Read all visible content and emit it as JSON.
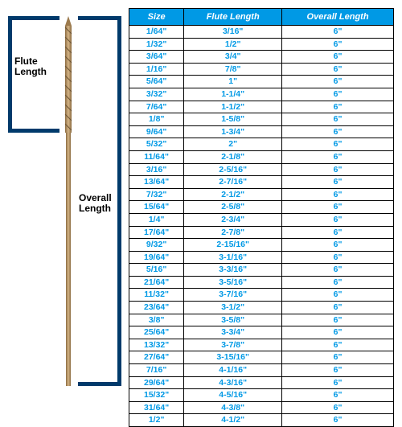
{
  "diagram": {
    "flute_label_line1": "Flute",
    "flute_label_line2": "Length",
    "overall_label_line1": "Overall",
    "overall_label_line2": "Length",
    "bracket_color": "#003a6b",
    "drill_color": "#b8935f"
  },
  "table": {
    "header_bg": "#0099e5",
    "header_fg": "#ffffff",
    "cell_fg": "#0099e5",
    "border_color": "#000000",
    "columns": [
      "Size",
      "Flute Length",
      "Overall Length"
    ],
    "rows": [
      [
        "1/64\"",
        "3/16\"",
        "6\""
      ],
      [
        "1/32\"",
        "1/2\"",
        "6\""
      ],
      [
        "3/64\"",
        "3/4\"",
        "6\""
      ],
      [
        "1/16\"",
        "7/8\"",
        "6\""
      ],
      [
        "5/64\"",
        "1\"",
        "6\""
      ],
      [
        "3/32\"",
        "1-1/4\"",
        "6\""
      ],
      [
        "7/64\"",
        "1-1/2\"",
        "6\""
      ],
      [
        "1/8\"",
        "1-5/8\"",
        "6\""
      ],
      [
        "9/64\"",
        "1-3/4\"",
        "6\""
      ],
      [
        "5/32\"",
        "2\"",
        "6\""
      ],
      [
        "11/64\"",
        "2-1/8\"",
        "6\""
      ],
      [
        "3/16\"",
        "2-5/16\"",
        "6\""
      ],
      [
        "13/64\"",
        "2-7/16\"",
        "6\""
      ],
      [
        "7/32\"",
        "2-1/2\"",
        "6\""
      ],
      [
        "15/64\"",
        "2-5/8\"",
        "6\""
      ],
      [
        "1/4\"",
        "2-3/4\"",
        "6\""
      ],
      [
        "17/64\"",
        "2-7/8\"",
        "6\""
      ],
      [
        "9/32\"",
        "2-15/16\"",
        "6\""
      ],
      [
        "19/64\"",
        "3-1/16\"",
        "6\""
      ],
      [
        "5/16\"",
        "3-3/16\"",
        "6\""
      ],
      [
        "21/64\"",
        "3-5/16\"",
        "6\""
      ],
      [
        "11/32\"",
        "3-7/16\"",
        "6\""
      ],
      [
        "23/64\"",
        "3-1/2\"",
        "6\""
      ],
      [
        "3/8\"",
        "3-5/8\"",
        "6\""
      ],
      [
        "25/64\"",
        "3-3/4\"",
        "6\""
      ],
      [
        "13/32\"",
        "3-7/8\"",
        "6\""
      ],
      [
        "27/64\"",
        "3-15/16\"",
        "6\""
      ],
      [
        "7/16\"",
        "4-1/16\"",
        "6\""
      ],
      [
        "29/64\"",
        "4-3/16\"",
        "6\""
      ],
      [
        "15/32\"",
        "4-5/16\"",
        "6\""
      ],
      [
        "31/64\"",
        "4-3/8\"",
        "6\""
      ],
      [
        "1/2\"",
        "4-1/2\"",
        "6\""
      ]
    ]
  }
}
